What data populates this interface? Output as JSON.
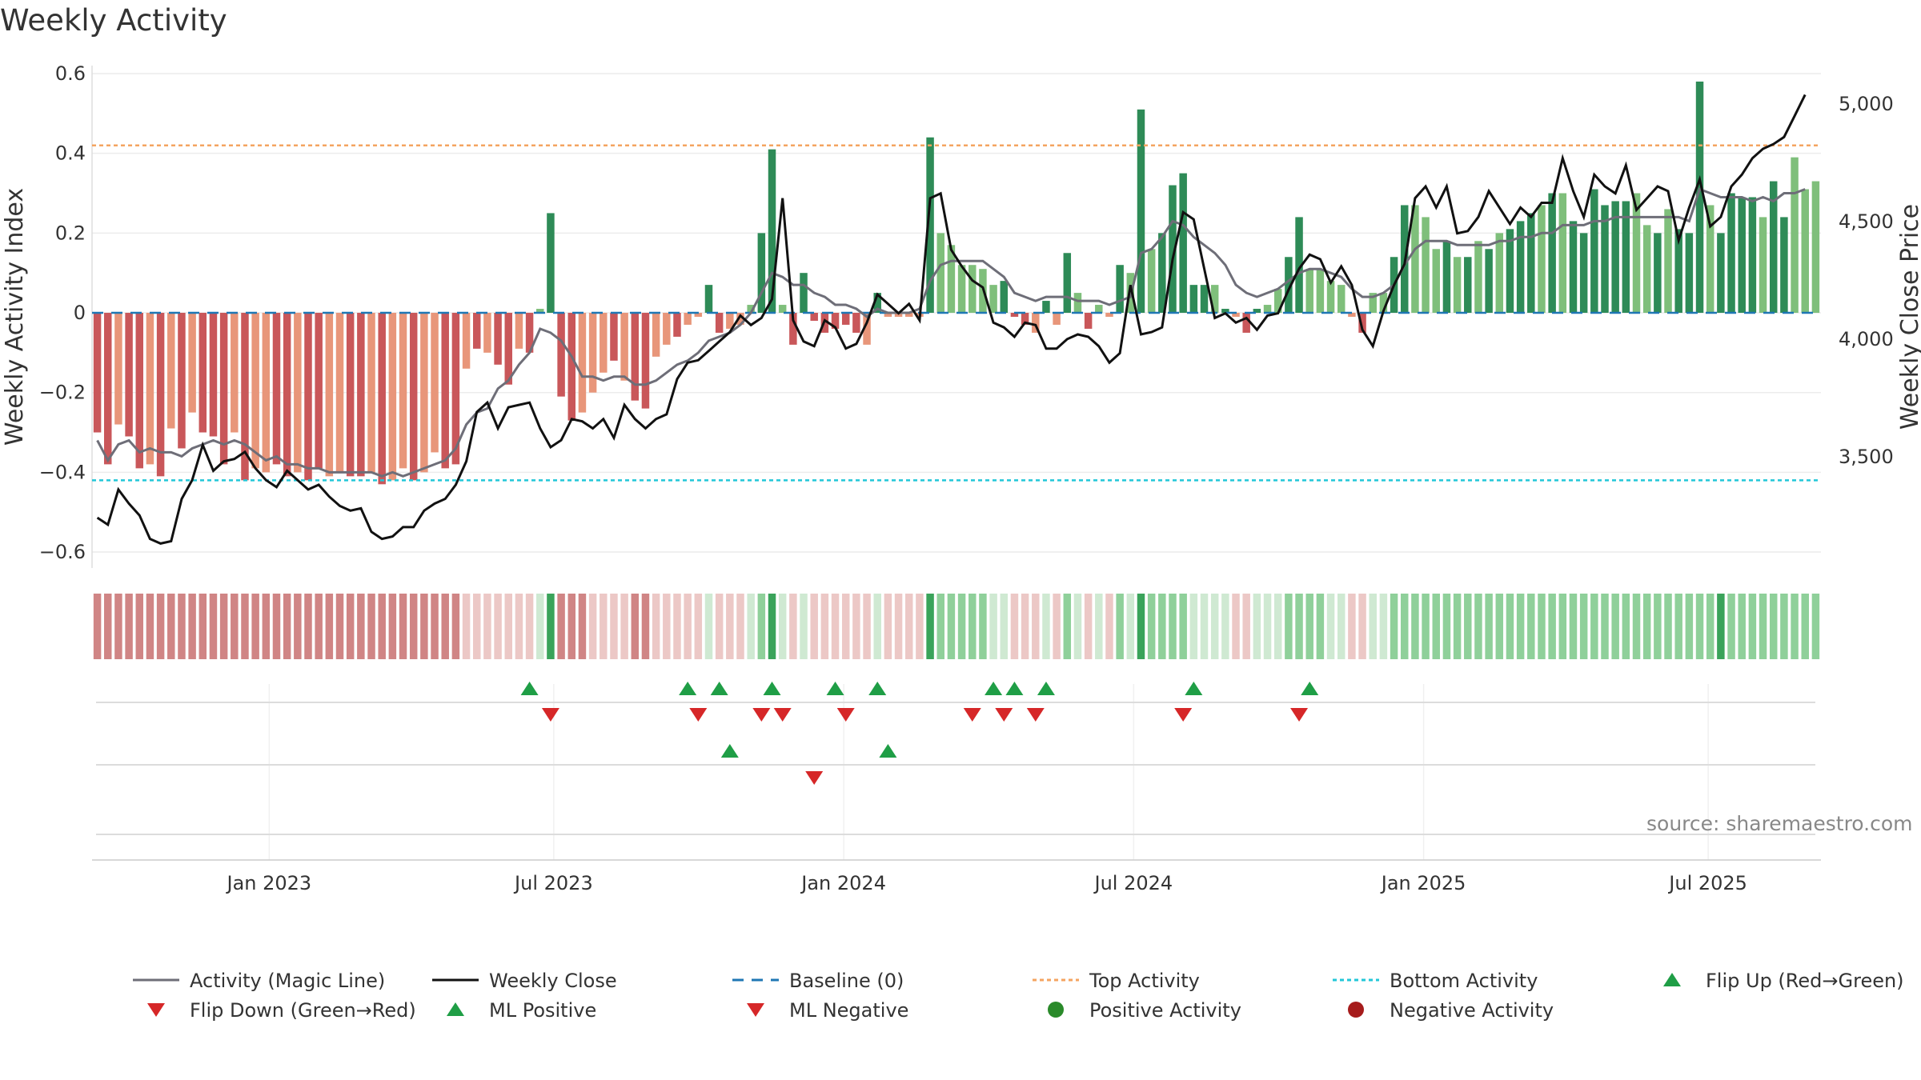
{
  "title": "Weekly Activity",
  "source": "source: sharemaestro.com",
  "colors": {
    "strong_green": "#2e8b57",
    "light_green": "#7fbf7b",
    "strong_red": "#c9575a",
    "light_red": "#e8967a",
    "magic_line": "#6e6e78",
    "close_line": "#111111",
    "baseline": "#1f77b4",
    "top": "#f4a460",
    "bottom": "#22c7d8",
    "flip_up": "#1f9e46",
    "flip_down": "#d62728"
  },
  "chart_data": {
    "type": "bar",
    "title": "Weekly Activity",
    "ylabel": "Weekly Activity Index",
    "y2label": "Weekly Close Price",
    "ylim": [
      -0.62,
      0.6
    ],
    "y2lim": [
      3060,
      5130
    ],
    "yticks": [
      0.6,
      0.4,
      0.2,
      0,
      -0.2,
      -0.4,
      -0.6
    ],
    "ytick_labels": [
      "0.6",
      "0.4",
      "0.2",
      "0",
      "−0.2",
      "−0.4",
      "−0.6"
    ],
    "y2ticks": [
      5000,
      4500,
      4000,
      3500
    ],
    "y2tick_labels": [
      "5,000",
      "4,500",
      "4,000",
      "3,500"
    ],
    "x_range": [
      0,
      161
    ],
    "xticks": [
      16.5,
      43,
      70,
      97,
      124,
      150.5
    ],
    "xtick_labels": [
      "Jan 2023",
      "Jul 2023",
      "Jan 2024",
      "Jul 2024",
      "Jan 2025",
      "Jul 2025"
    ],
    "top_activity": 0.42,
    "bottom_activity": -0.42,
    "baseline": 0,
    "activity": [
      -0.3,
      -0.38,
      -0.28,
      -0.31,
      -0.39,
      -0.38,
      -0.41,
      -0.29,
      -0.34,
      -0.25,
      -0.3,
      -0.31,
      -0.38,
      -0.3,
      -0.42,
      -0.39,
      -0.4,
      -0.38,
      -0.41,
      -0.4,
      -0.42,
      -0.39,
      -0.41,
      -0.4,
      -0.41,
      -0.41,
      -0.4,
      -0.43,
      -0.42,
      -0.39,
      -0.42,
      -0.4,
      -0.35,
      -0.39,
      -0.38,
      -0.14,
      -0.09,
      -0.1,
      -0.13,
      -0.18,
      -0.09,
      -0.1,
      0.01,
      0.25,
      -0.21,
      -0.27,
      -0.25,
      -0.2,
      -0.15,
      -0.12,
      -0.17,
      -0.22,
      -0.24,
      -0.11,
      -0.08,
      -0.06,
      -0.03,
      -0.01,
      0.07,
      -0.05,
      -0.04,
      -0.03,
      0.02,
      0.2,
      0.41,
      0.02,
      -0.08,
      0.1,
      -0.02,
      -0.05,
      -0.04,
      -0.03,
      -0.05,
      -0.08,
      0.05,
      -0.01,
      -0.01,
      -0.01,
      -0.01,
      0.44,
      0.2,
      0.17,
      0.12,
      0.12,
      0.11,
      0.07,
      0.08,
      -0.01,
      -0.03,
      -0.05,
      0.03,
      -0.03,
      0.15,
      0.05,
      -0.04,
      0.02,
      -0.01,
      0.12,
      0.1,
      0.51,
      0.16,
      0.2,
      0.32,
      0.35,
      0.07,
      0.07,
      0.07,
      0.01,
      -0.01,
      -0.05,
      0.01,
      0.02,
      0.06,
      0.14,
      0.24,
      0.11,
      0.11,
      0.08,
      0.07,
      -0.01,
      -0.05,
      0.05,
      0.05,
      0.14,
      0.27,
      0.27,
      0.24,
      0.16,
      0.18,
      0.14,
      0.14,
      0.18,
      0.16,
      0.2,
      0.21,
      0.23,
      0.25,
      0.27,
      0.3,
      0.3,
      0.23,
      0.2,
      0.31,
      0.27,
      0.28,
      0.28,
      0.3,
      0.22,
      0.2,
      0.26,
      0.21,
      0.2,
      0.58,
      0.27,
      0.2,
      0.3,
      0.29,
      0.29,
      0.24,
      0.33,
      0.24,
      0.39,
      0.31,
      0.33
    ],
    "magic_line": [
      -0.32,
      -0.37,
      -0.33,
      -0.32,
      -0.35,
      -0.34,
      -0.35,
      -0.35,
      -0.36,
      -0.34,
      -0.33,
      -0.32,
      -0.33,
      -0.32,
      -0.33,
      -0.35,
      -0.37,
      -0.36,
      -0.38,
      -0.38,
      -0.39,
      -0.39,
      -0.4,
      -0.4,
      -0.4,
      -0.4,
      -0.4,
      -0.41,
      -0.4,
      -0.41,
      -0.4,
      -0.39,
      -0.38,
      -0.37,
      -0.34,
      -0.28,
      -0.25,
      -0.24,
      -0.19,
      -0.17,
      -0.13,
      -0.1,
      -0.04,
      -0.05,
      -0.07,
      -0.11,
      -0.16,
      -0.16,
      -0.17,
      -0.16,
      -0.16,
      -0.18,
      -0.18,
      -0.17,
      -0.15,
      -0.13,
      -0.12,
      -0.1,
      -0.07,
      -0.06,
      -0.05,
      -0.03,
      0.0,
      0.05,
      0.1,
      0.09,
      0.07,
      0.07,
      0.05,
      0.04,
      0.02,
      0.02,
      0.01,
      -0.01,
      0.01,
      0.0,
      0.0,
      0.0,
      0.01,
      0.08,
      0.12,
      0.13,
      0.13,
      0.13,
      0.13,
      0.11,
      0.09,
      0.05,
      0.04,
      0.03,
      0.04,
      0.04,
      0.04,
      0.03,
      0.03,
      0.03,
      0.02,
      0.03,
      0.04,
      0.15,
      0.16,
      0.19,
      0.23,
      0.22,
      0.19,
      0.17,
      0.15,
      0.12,
      0.07,
      0.05,
      0.04,
      0.05,
      0.06,
      0.08,
      0.1,
      0.11,
      0.11,
      0.1,
      0.09,
      0.06,
      0.04,
      0.04,
      0.05,
      0.07,
      0.12,
      0.16,
      0.18,
      0.18,
      0.18,
      0.17,
      0.17,
      0.17,
      0.17,
      0.18,
      0.18,
      0.19,
      0.19,
      0.2,
      0.2,
      0.22,
      0.22,
      0.22,
      0.23,
      0.23,
      0.24,
      0.24,
      0.24,
      0.24,
      0.24,
      0.24,
      0.24,
      0.23,
      0.31,
      0.3,
      0.29,
      0.29,
      0.29,
      0.28,
      0.29,
      0.28,
      0.3,
      0.3,
      0.31
    ],
    "weekly_close": [
      3240,
      3210,
      3360,
      3300,
      3250,
      3150,
      3130,
      3140,
      3320,
      3400,
      3550,
      3440,
      3480,
      3490,
      3520,
      3450,
      3400,
      3370,
      3440,
      3400,
      3360,
      3380,
      3330,
      3290,
      3270,
      3280,
      3180,
      3150,
      3160,
      3200,
      3200,
      3270,
      3300,
      3320,
      3380,
      3480,
      3690,
      3730,
      3620,
      3710,
      3720,
      3730,
      3620,
      3540,
      3570,
      3660,
      3650,
      3620,
      3660,
      3580,
      3720,
      3660,
      3620,
      3660,
      3680,
      3830,
      3900,
      3910,
      3950,
      3990,
      4030,
      4100,
      4060,
      4090,
      4170,
      4600,
      4080,
      3990,
      3970,
      4080,
      4050,
      3960,
      3980,
      4070,
      4190,
      4150,
      4110,
      4150,
      4080,
      4600,
      4620,
      4380,
      4310,
      4250,
      4220,
      4070,
      4050,
      4010,
      4070,
      4060,
      3960,
      3960,
      4000,
      4020,
      4010,
      3970,
      3900,
      3940,
      4230,
      4020,
      4030,
      4050,
      4340,
      4540,
      4510,
      4300,
      4090,
      4110,
      4070,
      4090,
      4040,
      4100,
      4110,
      4210,
      4300,
      4360,
      4340,
      4240,
      4310,
      4230,
      4040,
      3970,
      4120,
      4230,
      4320,
      4600,
      4650,
      4560,
      4650,
      4450,
      4460,
      4520,
      4630,
      4560,
      4490,
      4560,
      4520,
      4580,
      4580,
      4770,
      4630,
      4520,
      4700,
      4650,
      4620,
      4740,
      4550,
      4600,
      4650,
      4630,
      4420,
      4560,
      4680,
      4480,
      4520,
      4650,
      4700,
      4770,
      4810,
      4830,
      4860,
      4950,
      5040
    ],
    "bar_strength": [
      1,
      1,
      0,
      1,
      1,
      0,
      1,
      0,
      1,
      0,
      1,
      1,
      1,
      0,
      1,
      0,
      0,
      1,
      1,
      0,
      1,
      1,
      0,
      0,
      1,
      1,
      0,
      1,
      0,
      0,
      1,
      0,
      0,
      1,
      1,
      0,
      1,
      0,
      1,
      1,
      0,
      1,
      0,
      1,
      1,
      1,
      0,
      0,
      0,
      1,
      0,
      1,
      1,
      0,
      0,
      1,
      0,
      0,
      1,
      1,
      0,
      0,
      0,
      1,
      1,
      0,
      1,
      1,
      1,
      1,
      1,
      1,
      1,
      0,
      1,
      0,
      0,
      0,
      0,
      1,
      0,
      0,
      0,
      0,
      0,
      0,
      1,
      1,
      1,
      0,
      1,
      0,
      1,
      0,
      1,
      0,
      0,
      1,
      0,
      1,
      0,
      1,
      1,
      1,
      1,
      1,
      0,
      1,
      0,
      1,
      1,
      0,
      0,
      1,
      1,
      0,
      0,
      0,
      0,
      0,
      1,
      0,
      0,
      1,
      1,
      0,
      0,
      0,
      1,
      0,
      1,
      0,
      1,
      0,
      1,
      1,
      1,
      0,
      1,
      0,
      1,
      1,
      1,
      1,
      1,
      1,
      0,
      0,
      1,
      0,
      1,
      1,
      1,
      0,
      1,
      1,
      1,
      1,
      0,
      1,
      1
    ],
    "strip_strength": [
      0,
      0,
      0,
      0,
      0,
      0,
      0,
      0,
      0,
      0,
      0,
      0,
      0,
      0,
      0,
      0,
      0,
      0,
      0,
      0,
      0,
      0,
      0,
      0,
      0,
      0,
      0,
      0,
      0,
      0,
      0,
      0,
      0,
      0,
      1,
      1,
      1,
      1,
      1,
      1,
      1,
      1,
      1,
      2,
      1,
      1,
      1,
      1,
      1,
      1,
      1,
      1,
      1,
      1,
      1,
      1,
      1,
      1,
      1,
      1,
      1,
      1,
      1,
      1,
      2,
      1,
      1,
      1,
      1,
      1,
      1,
      1,
      1,
      1,
      1,
      1,
      1,
      1,
      1,
      2,
      1,
      1,
      1,
      1,
      1,
      1,
      1,
      1,
      1,
      1,
      1,
      1,
      1,
      1,
      1,
      1,
      1,
      1,
      1,
      2,
      1,
      1,
      1,
      1,
      1,
      1,
      1,
      1,
      1,
      1,
      1,
      1,
      1,
      1,
      1,
      1,
      1,
      1,
      1,
      1,
      1,
      1,
      1,
      1,
      1,
      1,
      1,
      1,
      1,
      1,
      1,
      1,
      1,
      1,
      1,
      1,
      1,
      1,
      1,
      1,
      1,
      1,
      1,
      1,
      1,
      1,
      1,
      1,
      1,
      1,
      1,
      1,
      1,
      1,
      2,
      1,
      1,
      1,
      1,
      1,
      1
    ],
    "flip_up": [
      41,
      56,
      59,
      64,
      70,
      74,
      85,
      87,
      90,
      104,
      115
    ],
    "flip_down": [
      43,
      57,
      63,
      65,
      71,
      83,
      86,
      89,
      103,
      114
    ],
    "ml_positive": [
      60,
      75
    ],
    "ml_negative": [
      68
    ],
    "legend": [
      {
        "label": "Activity (Magic Line)",
        "kind": "line-gray"
      },
      {
        "label": "Weekly Close",
        "kind": "line-black"
      },
      {
        "label": "Baseline (0)",
        "kind": "dash-blue"
      },
      {
        "label": "Top Activity",
        "kind": "dot-orange"
      },
      {
        "label": "Bottom Activity",
        "kind": "dot-cyan"
      },
      {
        "label": "Flip Up (Red→Green)",
        "kind": "tri-up"
      },
      {
        "label": "Flip Down (Green→Red)",
        "kind": "tri-down"
      },
      {
        "label": "ML Positive",
        "kind": "tri-up"
      },
      {
        "label": "ML Negative",
        "kind": "tri-down"
      },
      {
        "label": "Positive Activity",
        "kind": "dot-green"
      },
      {
        "label": "Negative Activity",
        "kind": "dot-red"
      }
    ]
  }
}
